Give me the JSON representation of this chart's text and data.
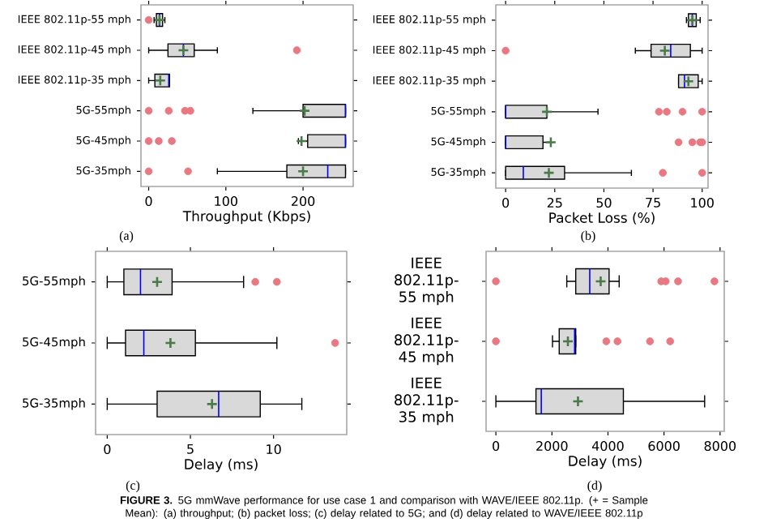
{
  "chart_data": [
    {
      "type": "box",
      "orientation": "horizontal",
      "xlabel": "Throughput (Kbps)",
      "categories": [
        "IEEE 802.11p-55 mph",
        "IEEE 802.11p-45 mph",
        "IEEE 802.11p-35 mph",
        "5G-55mph",
        "5G-45mph",
        "5G-35mph"
      ],
      "xlim": [
        -10,
        265
      ],
      "xticks": [
        0,
        100,
        200
      ],
      "annotations": [
        "(a)"
      ],
      "series": [
        {
          "color": "#d9d9d9",
          "boxes": [
            {
              "low": 7,
              "q1": 10,
              "median": 14,
              "q3": 18,
              "high": 21,
              "mean": 14,
              "outliers": [
                0
              ]
            },
            {
              "low": 0,
              "q1": 25,
              "median": 45,
              "q3": 59,
              "high": 89,
              "mean": 45,
              "outliers": [
                192
              ]
            },
            {
              "low": 0,
              "q1": 8,
              "median": 26,
              "q3": 27,
              "high": 27,
              "mean": 15
            },
            {
              "low": 135,
              "q1": 200,
              "median": 255,
              "q3": 255,
              "high": 255,
              "mean": 202,
              "outliers": [
                0,
                26,
                47,
                54
              ]
            },
            {
              "low": 194,
              "q1": 206,
              "median": 255,
              "q3": 255,
              "high": 255,
              "mean": 198,
              "outliers": [
                0,
                13,
                30
              ]
            },
            {
              "low": 89,
              "q1": 179,
              "median": 232,
              "q3": 255,
              "high": 255,
              "mean": 200,
              "outliers": [
                0,
                51
              ]
            }
          ]
        }
      ]
    },
    {
      "type": "box",
      "orientation": "horizontal",
      "xlabel": "Packet Loss (%)",
      "categories": [
        "IEEE 802.11p-55 mph",
        "IEEE 802.11p-45 mph",
        "IEEE 802.11p-35 mph",
        "5G-55mph",
        "5G-45mph",
        "5G-35mph"
      ],
      "xlim": [
        -5,
        103
      ],
      "xticks": [
        0,
        25,
        50,
        75,
        100
      ],
      "annotations": [
        "(b)"
      ],
      "series": [
        {
          "color": "#d9d9d9",
          "boxes": [
            {
              "low": 92,
              "q1": 93,
              "median": 95,
              "q3": 97,
              "high": 99,
              "mean": 95
            },
            {
              "low": 66,
              "q1": 74,
              "median": 84,
              "q3": 94,
              "high": 100,
              "mean": 81,
              "outliers": [
                0
              ]
            },
            {
              "low": 88,
              "q1": 88,
              "median": 91,
              "q3": 98,
              "high": 100,
              "mean": 93
            },
            {
              "low": 0,
              "q1": 0,
              "median": 0,
              "q3": 21,
              "high": 47,
              "mean": 21,
              "outliers": [
                78,
                82,
                90,
                100
              ]
            },
            {
              "low": 0,
              "q1": 0,
              "median": 0,
              "q3": 19,
              "high": 23,
              "mean": 23,
              "outliers": [
                88,
                95,
                99,
                100
              ]
            },
            {
              "low": 0,
              "q1": 0,
              "median": 9,
              "q3": 30,
              "high": 64,
              "mean": 22,
              "outliers": [
                80,
                100
              ]
            }
          ]
        }
      ]
    },
    {
      "type": "box",
      "orientation": "horizontal",
      "xlabel": "Delay (ms)",
      "categories": [
        "5G-55mph",
        "5G-45mph",
        "5G-35mph"
      ],
      "xlim": [
        -0.7,
        14.4
      ],
      "xticks": [
        0,
        5,
        10
      ],
      "annotations": [
        "(c)"
      ],
      "series": [
        {
          "color": "#d9d9d9",
          "boxes": [
            {
              "low": 0,
              "q1": 1,
              "median": 2,
              "q3": 3.9,
              "high": 8.2,
              "mean": 3,
              "outliers": [
                8.9,
                10.2
              ]
            },
            {
              "low": 0,
              "q1": 1.1,
              "median": 2.2,
              "q3": 5.3,
              "high": 10.2,
              "mean": 3.8,
              "outliers": [
                13.7
              ]
            },
            {
              "low": 0,
              "q1": 3,
              "median": 6.7,
              "q3": 9.2,
              "high": 11.7,
              "mean": 6.3
            }
          ]
        }
      ]
    },
    {
      "type": "box",
      "orientation": "horizontal",
      "xlabel": "Delay (ms)",
      "categories": [
        "IEEE 802.11p-55 mph",
        "IEEE 802.11p-45 mph",
        "IEEE 802.11p-35 mph"
      ],
      "xlim": [
        -350,
        8150
      ],
      "xticks": [
        0,
        2000,
        4000,
        6000,
        8000
      ],
      "annotations": [
        "(d)",
        "**FIGURE 3.** 5G mmWave performance for use case 1 and comparison with WAVE/IEEE 802.11p. (+ = Sample Mean): (a) throughput; (b) packet loss; (c) delay related to 5G; and (d) delay related to WAVE/IEEE 802.11p"
      ],
      "series": [
        {
          "color": "#d9d9d9",
          "boxes": [
            {
              "low": 2530,
              "q1": 2850,
              "median": 3350,
              "q3": 4040,
              "high": 4400,
              "mean": 3740,
              "outliers": [
                0,
                5900,
                6060,
                6500,
                7800
              ]
            },
            {
              "low": 2020,
              "q1": 2260,
              "median": 2810,
              "q3": 2850,
              "high": 2850,
              "mean": 2570,
              "outliers": [
                0,
                3940,
                4340,
                5500,
                6220
              ]
            },
            {
              "low": 0,
              "q1": 1430,
              "median": 1620,
              "q3": 4550,
              "high": 7450,
              "mean": 2930
            }
          ]
        }
      ]
    }
  ]
}
